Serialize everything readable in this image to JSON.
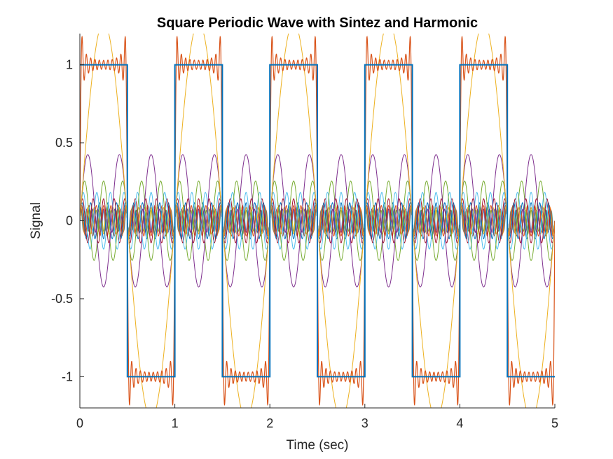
{
  "chart_data": {
    "type": "line",
    "title": "Square Periodic Wave with Sintez and Harmonic",
    "xlabel": "Time (sec)",
    "ylabel": "Signal",
    "xlim": [
      0,
      5
    ],
    "ylim": [
      -1.2,
      1.2
    ],
    "xticks": [
      0,
      1,
      2,
      3,
      4,
      5
    ],
    "xtick_labels": [
      "0",
      "1",
      "2",
      "3",
      "4",
      "5"
    ],
    "yticks": [
      -1,
      -0.5,
      0,
      0.5,
      1
    ],
    "ytick_labels": [
      "-1",
      "-0.5",
      "0",
      "0.5",
      "1"
    ],
    "grid": false,
    "legend": "none",
    "period": 1,
    "harmonic_orders": [
      1,
      3,
      5,
      7,
      9,
      11,
      13,
      15,
      17,
      19,
      21
    ],
    "colors": {
      "square": "#0072BD",
      "sintez": "#D95319",
      "harmonics": [
        "#EDB120",
        "#7E2F8E",
        "#77AC30",
        "#4DBEEE",
        "#A2142F",
        "#0072BD",
        "#D95319",
        "#EDB120",
        "#7E2F8E",
        "#77AC30",
        "#4DBEEE"
      ]
    },
    "series": [
      {
        "kind": "square",
        "x": [
          0,
          0.5,
          0.5,
          1,
          1,
          1.5,
          1.5,
          2,
          2,
          2.5,
          2.5,
          3,
          3,
          3.5,
          3.5,
          4,
          4,
          4.5,
          4.5,
          5
        ],
        "y": [
          1,
          1,
          -1,
          -1,
          1,
          1,
          -1,
          -1,
          1,
          1,
          -1,
          -1,
          1,
          1,
          -1,
          -1,
          1,
          1,
          -1,
          -1
        ]
      },
      {
        "kind": "sintez",
        "formula": "sum of harmonics n = 1..21 (odd)"
      },
      {
        "kind": "harmonic",
        "n": 1,
        "amplitude": 1.2732
      },
      {
        "kind": "harmonic",
        "n": 3,
        "amplitude": 0.4244
      },
      {
        "kind": "harmonic",
        "n": 5,
        "amplitude": 0.2546
      },
      {
        "kind": "harmonic",
        "n": 7,
        "amplitude": 0.1819
      },
      {
        "kind": "harmonic",
        "n": 9,
        "amplitude": 0.1415
      },
      {
        "kind": "harmonic",
        "n": 11,
        "amplitude": 0.1157
      },
      {
        "kind": "harmonic",
        "n": 13,
        "amplitude": 0.0979
      },
      {
        "kind": "harmonic",
        "n": 15,
        "amplitude": 0.0849
      },
      {
        "kind": "harmonic",
        "n": 17,
        "amplitude": 0.0749
      },
      {
        "kind": "harmonic",
        "n": 19,
        "amplitude": 0.067
      },
      {
        "kind": "harmonic",
        "n": 21,
        "amplitude": 0.0606
      }
    ]
  }
}
